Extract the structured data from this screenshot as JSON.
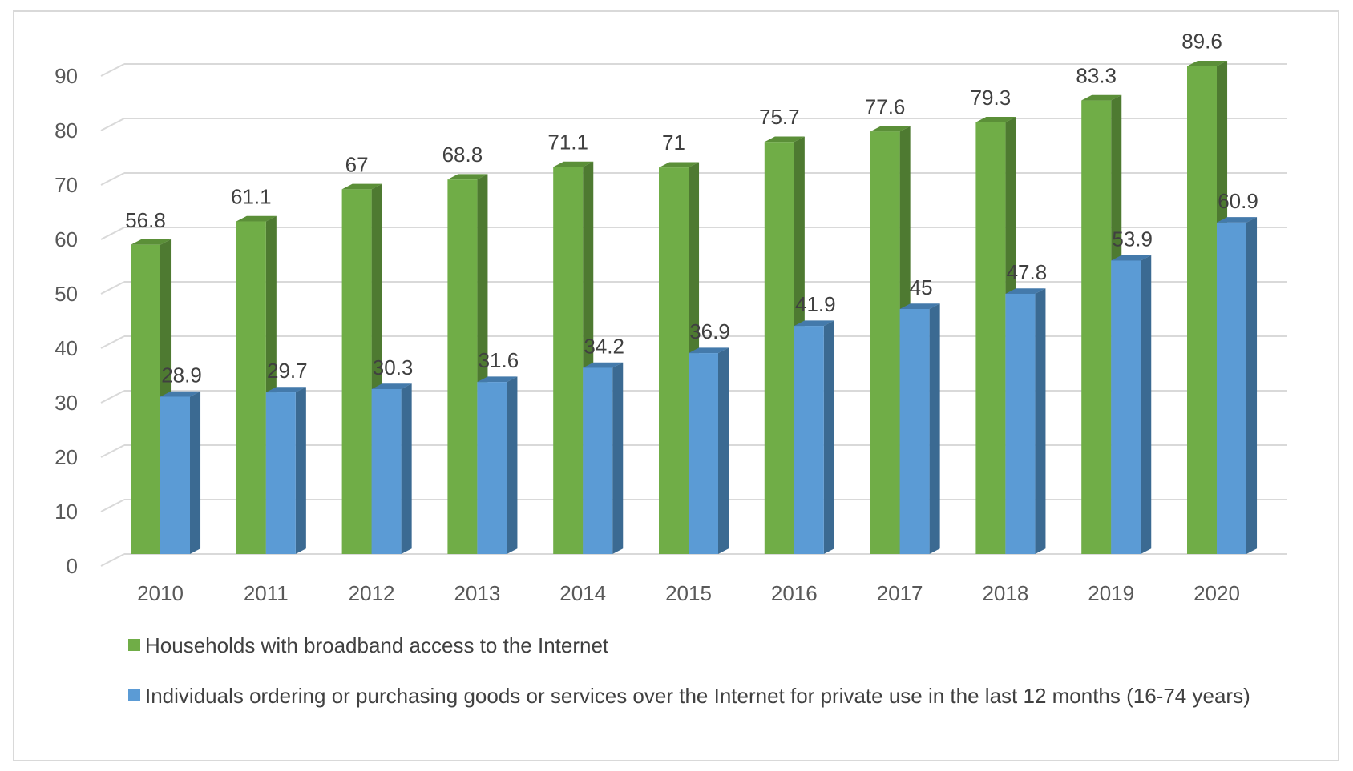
{
  "chart_data": {
    "type": "bar",
    "style": "3d-clustered-column",
    "categories": [
      "2010",
      "2011",
      "2012",
      "2013",
      "2014",
      "2015",
      "2016",
      "2017",
      "2018",
      "2019",
      "2020"
    ],
    "series": [
      {
        "name": "Households with  broadband access to the Internet",
        "color": "#70ad47",
        "side_color": "#4e7a31",
        "top_color": "#5b8f38",
        "values": [
          56.8,
          61.1,
          67,
          68.8,
          71.1,
          71,
          75.7,
          77.6,
          79.3,
          83.3,
          89.6
        ]
      },
      {
        "name": "Individuals ordering or purchasing goods or services over the Internet for private use in the last 12 months (16-74 years)",
        "color": "#5b9bd5",
        "side_color": "#3b6a92",
        "top_color": "#447aab",
        "values": [
          28.9,
          29.7,
          30.3,
          31.6,
          34.2,
          36.9,
          41.9,
          45,
          47.8,
          53.9,
          60.9
        ]
      }
    ],
    "y_ticks": [
      "0",
      "10",
      "20",
      "30",
      "40",
      "50",
      "60",
      "70",
      "80",
      "90"
    ],
    "ylim": [
      0,
      90
    ],
    "grid": true,
    "legend_position": "bottom-left",
    "title": "",
    "xlabel": "",
    "ylabel": ""
  }
}
